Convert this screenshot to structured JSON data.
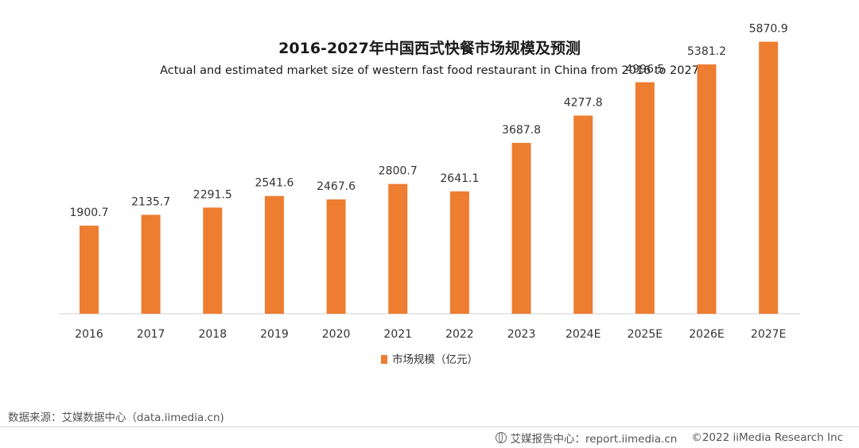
{
  "chart_data": {
    "type": "bar",
    "title": "2016-2027年中国西式快餐市场规模及预测",
    "subtitle": "Actual and estimated market size of western fast food restaurant in China from 2016 to 2027",
    "categories": [
      "2016",
      "2017",
      "2018",
      "2019",
      "2020",
      "2021",
      "2022",
      "2023",
      "2024E",
      "2025E",
      "2026E",
      "2027E"
    ],
    "series": [
      {
        "name": "市场规模（亿元）",
        "values": [
          1900.7,
          2135.7,
          2291.5,
          2541.6,
          2467.6,
          2800.7,
          2641.1,
          3687.8,
          4277.8,
          4996.5,
          5381.2,
          5870.9
        ],
        "labels": [
          "1900.7",
          "2135.7",
          "2291.5",
          "2541.6",
          "2467.6",
          "2800.7",
          "2641.1",
          "3687.8",
          "4277.8",
          "4996.5",
          "5381.2",
          "5870.9"
        ]
      }
    ],
    "ylim": [
      0,
      6000
    ],
    "grid": false,
    "legend": "bottom",
    "xlabel": "",
    "ylabel": ""
  },
  "colors": {
    "bar": "#ED7D31",
    "axis": "#d0d0d0",
    "label": "#333333"
  },
  "source": "数据来源：艾媒数据中心（data.iimedia.cn)",
  "footer": {
    "icon": "globe-icon",
    "report": "艾媒报告中心：report.iimedia.cn",
    "copyright": "©2022 iiMedia Research Inc"
  }
}
